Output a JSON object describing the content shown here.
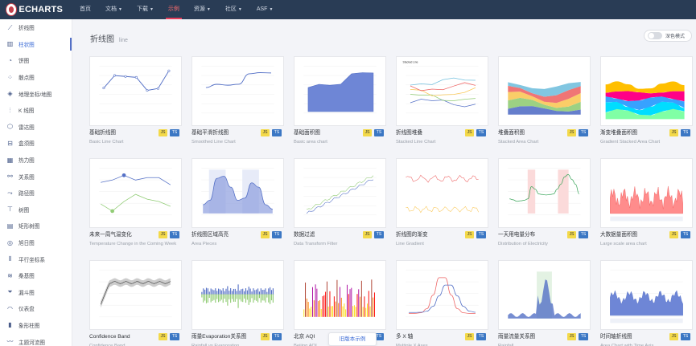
{
  "brand": {
    "logo_text": "ECHARTS",
    "accent": "#e43c59"
  },
  "nav": [
    {
      "label": "首页",
      "dropdown": false,
      "active": false
    },
    {
      "label": "文档",
      "dropdown": true,
      "active": false
    },
    {
      "label": "下载",
      "dropdown": true,
      "active": false
    },
    {
      "label": "示例",
      "dropdown": false,
      "active": true
    },
    {
      "label": "资源",
      "dropdown": true,
      "active": false
    },
    {
      "label": "社区",
      "dropdown": true,
      "active": false
    },
    {
      "label": "ASF",
      "dropdown": true,
      "active": false
    }
  ],
  "sidebar": {
    "items": [
      {
        "label": "折线图",
        "icon": "line-chart-icon",
        "active": false
      },
      {
        "label": "柱状图",
        "icon": "bar-chart-icon",
        "active": true
      },
      {
        "label": "饼图",
        "icon": "pie-chart-icon",
        "active": false
      },
      {
        "label": "散点图",
        "icon": "scatter-chart-icon",
        "active": false
      },
      {
        "label": "地理坐标/地图",
        "icon": "map-icon",
        "active": false
      },
      {
        "label": "K 线图",
        "icon": "candlestick-icon",
        "active": false
      },
      {
        "label": "雷达图",
        "icon": "radar-icon",
        "active": false
      },
      {
        "label": "盒须图",
        "icon": "boxplot-icon",
        "active": false
      },
      {
        "label": "热力图",
        "icon": "heatmap-icon",
        "active": false
      },
      {
        "label": "关系图",
        "icon": "graph-icon",
        "active": false
      },
      {
        "label": "路径图",
        "icon": "lines-icon",
        "active": false
      },
      {
        "label": "树图",
        "icon": "tree-icon",
        "active": false
      },
      {
        "label": "矩形树图",
        "icon": "treemap-icon",
        "active": false
      },
      {
        "label": "旭日图",
        "icon": "sunburst-icon",
        "active": false
      },
      {
        "label": "平行坐标系",
        "icon": "parallel-icon",
        "active": false
      },
      {
        "label": "桑基图",
        "icon": "sankey-icon",
        "active": false
      },
      {
        "label": "漏斗图",
        "icon": "funnel-icon",
        "active": false
      },
      {
        "label": "仪表盘",
        "icon": "gauge-icon",
        "active": false
      },
      {
        "label": "象形柱图",
        "icon": "pictorial-bar-icon",
        "active": false
      },
      {
        "label": "主题河流图",
        "icon": "theme-river-icon",
        "active": false
      }
    ]
  },
  "page": {
    "title": "折线图",
    "subtitle": "line"
  },
  "dark_mode": {
    "label": "深色模式",
    "enabled": false
  },
  "badges": {
    "js": "JS",
    "ts": "TS"
  },
  "old_version_label": "旧版本示例",
  "examples": [
    {
      "title": "基础折线图",
      "subtitle": "Basic Line Chart",
      "thumb": "basic-line"
    },
    {
      "title": "基础平滑折线图",
      "subtitle": "Smoothed Line Chart",
      "thumb": "smooth-line"
    },
    {
      "title": "基础面积图",
      "subtitle": "Basic area chart",
      "thumb": "basic-area"
    },
    {
      "title": "折线图堆叠",
      "subtitle": "Stacked Line Chart",
      "thumb": "stacked-line"
    },
    {
      "title": "堆叠面积图",
      "subtitle": "Stacked Area Chart",
      "thumb": "stacked-area"
    },
    {
      "title": "渐变堆叠面积图",
      "subtitle": "Gradient Stacked Area Chart",
      "thumb": "gradient-stacked"
    },
    {
      "title": "未来一周气温变化",
      "subtitle": "Temperature Change in the Coming Week",
      "thumb": "temperature"
    },
    {
      "title": "折线图区域高亮",
      "subtitle": "Area Pieces",
      "thumb": "area-pieces"
    },
    {
      "title": "数据过滤",
      "subtitle": "Data Transform Filter",
      "thumb": "data-filter"
    },
    {
      "title": "折线图的渐变",
      "subtitle": "Line Gradient",
      "thumb": "line-gradient"
    },
    {
      "title": "一天用电量分布",
      "subtitle": "Distribution of Electricity",
      "thumb": "electricity"
    },
    {
      "title": "大数据量面积图",
      "subtitle": "Large scale area chart",
      "thumb": "large-area"
    },
    {
      "title": "Confidence Band",
      "subtitle": "Confidence Band",
      "thumb": "confidence"
    },
    {
      "title": "雨量Evaporation关系图",
      "subtitle": "Rainfall vs Evaporation",
      "thumb": "rain-evap"
    },
    {
      "title": "北京 AQI",
      "subtitle": "Beijing AQI",
      "thumb": "aqi"
    },
    {
      "title": "多 X 轴",
      "subtitle": "Multiple X Axes",
      "thumb": "multi-x"
    },
    {
      "title": "雨量流量关系图",
      "subtitle": "Rainfall",
      "thumb": "rainfall"
    },
    {
      "title": "时间轴折线图",
      "subtitle": "Area Chart with Time Axis",
      "thumb": "time-axis"
    }
  ]
}
